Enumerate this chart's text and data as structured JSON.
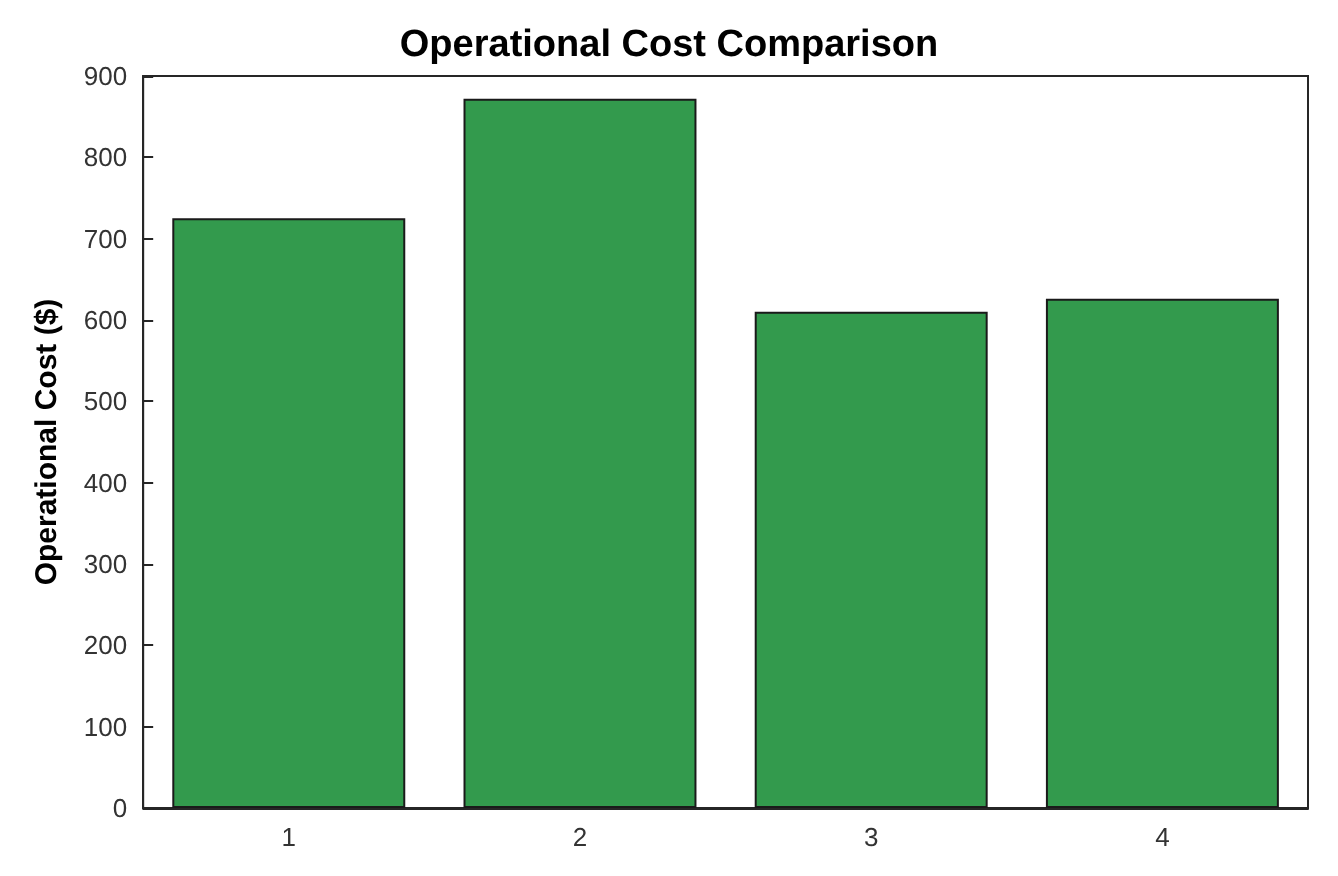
{
  "chart_data": {
    "type": "bar",
    "title": "Operational Cost Comparison",
    "ylabel": "Operational Cost ($)",
    "categories": [
      "1",
      "2",
      "3",
      "4"
    ],
    "values": [
      725,
      872,
      610,
      626
    ],
    "color": "#339a4d",
    "ylim": [
      0,
      900
    ],
    "yticks": [
      0,
      100,
      200,
      300,
      400,
      500,
      600,
      700,
      800,
      900
    ],
    "grid": false
  }
}
